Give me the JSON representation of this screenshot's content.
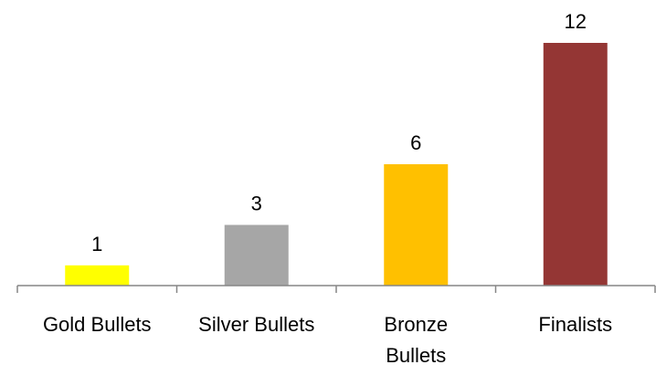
{
  "chart_data": {
    "type": "bar",
    "categories": [
      "Gold Bullets",
      "Silver Bullets",
      "Bronze Bullets",
      "Finalists"
    ],
    "category_lines": [
      [
        "Gold Bullets"
      ],
      [
        "Silver Bullets"
      ],
      [
        "Bronze",
        "Bullets"
      ],
      [
        "Finalists"
      ]
    ],
    "values": [
      1,
      3,
      6,
      12
    ],
    "data_labels": [
      "1",
      "3",
      "6",
      "12"
    ],
    "colors": [
      "#FFFF00",
      "#A6A6A6",
      "#FFC000",
      "#943634"
    ],
    "ylim": [
      0,
      12
    ],
    "title": "",
    "xlabel": "",
    "ylabel": "",
    "grid": false,
    "legend": "none"
  }
}
